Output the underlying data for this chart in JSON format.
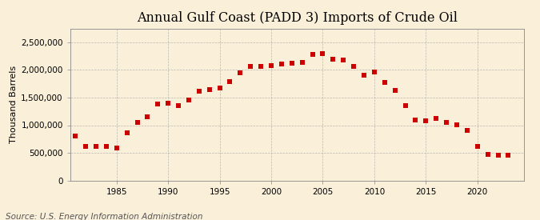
{
  "title": "Annual Gulf Coast (PADD 3) Imports of Crude Oil",
  "ylabel": "Thousand Barrels",
  "source": "Source: U.S. Energy Information Administration",
  "background_color": "#faefd9",
  "marker_color": "#cc0000",
  "years": [
    1981,
    1982,
    1983,
    1984,
    1985,
    1986,
    1987,
    1988,
    1989,
    1990,
    1991,
    1992,
    1993,
    1994,
    1995,
    1996,
    1997,
    1998,
    1999,
    2000,
    2001,
    2002,
    2003,
    2004,
    2005,
    2006,
    2007,
    2008,
    2009,
    2010,
    2011,
    2012,
    2013,
    2014,
    2015,
    2016,
    2017,
    2018,
    2019,
    2020,
    2021,
    2022,
    2023
  ],
  "values": [
    810000,
    620000,
    620000,
    620000,
    590000,
    860000,
    1050000,
    1150000,
    1390000,
    1400000,
    1350000,
    1450000,
    1620000,
    1640000,
    1680000,
    1790000,
    1950000,
    2060000,
    2060000,
    2080000,
    2110000,
    2120000,
    2140000,
    2280000,
    2300000,
    2200000,
    2180000,
    2060000,
    1900000,
    1960000,
    1770000,
    1630000,
    1350000,
    1100000,
    1080000,
    1130000,
    1050000,
    1010000,
    910000,
    610000,
    470000,
    460000,
    460000
  ],
  "ylim": [
    0,
    2750000
  ],
  "yticks": [
    0,
    500000,
    1000000,
    1500000,
    2000000,
    2500000
  ],
  "xlim": [
    1980.5,
    2024.5
  ],
  "xticks": [
    1985,
    1990,
    1995,
    2000,
    2005,
    2010,
    2015,
    2020
  ],
  "grid_color": "#aaaaaa",
  "title_fontsize": 11.5,
  "ylabel_fontsize": 8,
  "tick_fontsize": 7.5,
  "source_fontsize": 7.5,
  "marker_size": 4
}
